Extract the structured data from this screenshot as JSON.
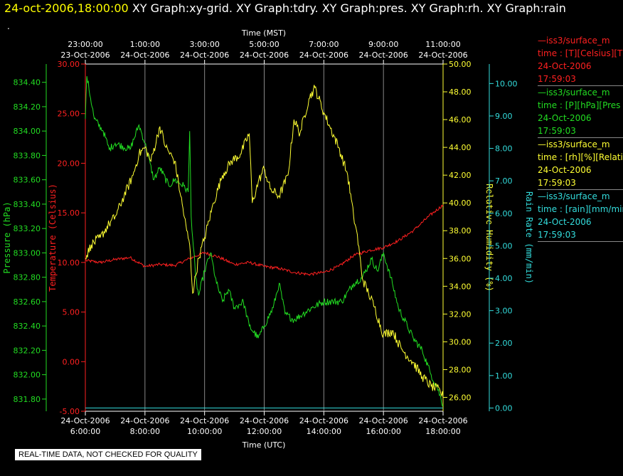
{
  "header": {
    "timestamp": "24-oct-2006,18:00:00",
    "graphs": "XY Graph:xy-grid.  XY Graph:tdry.  XY Graph:pres.  XY Graph:rh.  XY Graph:rain",
    "dot": "."
  },
  "footer": {
    "qc_notice": "REAL-TIME DATA, NOT CHECKED FOR QUALITY"
  },
  "legend": [
    {
      "color": "#ff2020",
      "lines": [
        "—iss3/surface_m",
        "time : [T][Celsius][T",
        "24-Oct-2006",
        "17:59:03"
      ]
    },
    {
      "color": "#22dd22",
      "lines": [
        "—iss3/surface_m",
        "time : [P][hPa][Pres",
        "24-Oct-2006",
        "17:59:03"
      ]
    },
    {
      "color": "#ffff33",
      "lines": [
        "—iss3/surface_m",
        "time : [rh][%][Relativ",
        "24-Oct-2006",
        "17:59:03"
      ]
    },
    {
      "color": "#33dddd",
      "lines": [
        "—iss3/surface_m",
        "time : [rain][mm/min",
        "24-Oct-2006",
        "17:59:03"
      ]
    }
  ],
  "chart_data": {
    "type": "line",
    "x_axis_top": {
      "label": "Time (MST)",
      "ticks": [
        {
          "time": "23:00:00",
          "date": "23-Oct-2006"
        },
        {
          "time": "1:00:00",
          "date": "24-Oct-2006"
        },
        {
          "time": "3:00:00",
          "date": "24-Oct-2006"
        },
        {
          "time": "5:00:00",
          "date": "24-Oct-2006"
        },
        {
          "time": "7:00:00",
          "date": "24-Oct-2006"
        },
        {
          "time": "9:00:00",
          "date": "24-Oct-2006"
        },
        {
          "time": "11:00:00",
          "date": "24-Oct-2006"
        }
      ]
    },
    "x_axis_bottom": {
      "label": "Time (UTC)",
      "ticks": [
        {
          "date": "24-Oct-2006",
          "time": "6:00:00"
        },
        {
          "date": "24-Oct-2006",
          "time": "8:00:00"
        },
        {
          "date": "24-Oct-2006",
          "time": "10:00:00"
        },
        {
          "date": "24-Oct-2006",
          "time": "12:00:00"
        },
        {
          "date": "24-Oct-2006",
          "time": "14:00:00"
        },
        {
          "date": "24-Oct-2006",
          "time": "16:00:00"
        },
        {
          "date": "24-Oct-2006",
          "time": "18:00:00"
        }
      ]
    },
    "xlim_hours_utc": [
      6,
      18
    ],
    "grid": true,
    "y_axes": [
      {
        "id": "pressure",
        "label": "Pressure (hPa)",
        "color": "#22dd22",
        "range": [
          831.7,
          834.55
        ],
        "ticks": [
          "834.40",
          "834.20",
          "834.00",
          "833.80",
          "833.60",
          "833.40",
          "833.20",
          "833.00",
          "832.80",
          "832.60",
          "832.40",
          "832.20",
          "832.00",
          "831.80"
        ]
      },
      {
        "id": "temperature",
        "label": "Temperature (Celsius)",
        "color": "#ff2020",
        "range": [
          -5,
          30
        ],
        "ticks": [
          "30.00",
          "25.00",
          "20.00",
          "15.00",
          "10.00",
          "5.00",
          "0.00",
          "-5.00"
        ]
      },
      {
        "id": "rh",
        "label": "Relative Humidity (%)",
        "color": "#ffff33",
        "range": [
          25.0,
          50.0
        ],
        "ticks": [
          "50.00",
          "48.00",
          "46.00",
          "44.00",
          "42.00",
          "40.00",
          "38.00",
          "36.00",
          "34.00",
          "32.00",
          "30.00",
          "28.00",
          "26.00"
        ]
      },
      {
        "id": "rain",
        "label": "Rain Rate (mm/min)",
        "color": "#33dddd",
        "range": [
          -0.1,
          10.6
        ],
        "ticks": [
          "10.00",
          "9.00",
          "8.00",
          "7.00",
          "6.00",
          "5.00",
          "4.00",
          "3.00",
          "2.00",
          "1.00",
          "0.00"
        ]
      }
    ],
    "series": [
      {
        "name": "iss3/surface_m time : [T][Celsius][T",
        "axis": "temperature",
        "color": "#ff2020",
        "noise": 0.15,
        "points": [
          [
            6.0,
            10.2
          ],
          [
            6.5,
            10.0
          ],
          [
            7.0,
            10.3
          ],
          [
            7.5,
            10.5
          ],
          [
            8.0,
            9.6
          ],
          [
            8.5,
            9.8
          ],
          [
            9.0,
            9.7
          ],
          [
            9.5,
            10.4
          ],
          [
            10.0,
            11.0
          ],
          [
            10.5,
            10.5
          ],
          [
            11.0,
            9.8
          ],
          [
            11.5,
            10.0
          ],
          [
            12.0,
            9.6
          ],
          [
            12.5,
            9.4
          ],
          [
            13.0,
            9.0
          ],
          [
            13.5,
            8.8
          ],
          [
            14.0,
            9.0
          ],
          [
            14.5,
            9.6
          ],
          [
            15.0,
            10.7
          ],
          [
            15.5,
            11.2
          ],
          [
            16.0,
            11.5
          ],
          [
            16.5,
            12.2
          ],
          [
            17.0,
            13.2
          ],
          [
            17.5,
            14.6
          ],
          [
            18.0,
            15.8
          ]
        ]
      },
      {
        "name": "iss3/surface_m time : [P][hPa][Pres",
        "axis": "pressure",
        "color": "#22dd22",
        "noise": 0.03,
        "points": [
          [
            6.0,
            834.1
          ],
          [
            6.05,
            834.45
          ],
          [
            6.3,
            834.1
          ],
          [
            6.6,
            834.0
          ],
          [
            6.8,
            833.85
          ],
          [
            7.0,
            833.9
          ],
          [
            7.5,
            833.85
          ],
          [
            7.8,
            834.05
          ],
          [
            8.0,
            833.9
          ],
          [
            8.3,
            833.6
          ],
          [
            8.5,
            833.7
          ],
          [
            8.8,
            833.55
          ],
          [
            9.0,
            833.6
          ],
          [
            9.3,
            833.55
          ],
          [
            9.45,
            833.5
          ],
          [
            9.5,
            834.0
          ],
          [
            9.55,
            833.3
          ],
          [
            9.7,
            832.8
          ],
          [
            9.8,
            832.65
          ],
          [
            10.0,
            832.85
          ],
          [
            10.2,
            833.0
          ],
          [
            10.4,
            832.75
          ],
          [
            10.6,
            832.6
          ],
          [
            10.8,
            832.7
          ],
          [
            11.0,
            832.55
          ],
          [
            11.3,
            832.6
          ],
          [
            11.5,
            832.4
          ],
          [
            11.8,
            832.3
          ],
          [
            12.0,
            832.4
          ],
          [
            12.3,
            832.55
          ],
          [
            12.5,
            832.75
          ],
          [
            12.7,
            832.5
          ],
          [
            13.0,
            832.45
          ],
          [
            13.3,
            832.5
          ],
          [
            13.6,
            832.55
          ],
          [
            14.0,
            832.6
          ],
          [
            14.3,
            832.6
          ],
          [
            14.6,
            832.6
          ],
          [
            15.0,
            832.75
          ],
          [
            15.3,
            832.8
          ],
          [
            15.6,
            832.95
          ],
          [
            15.8,
            832.85
          ],
          [
            16.0,
            833.0
          ],
          [
            16.3,
            832.75
          ],
          [
            16.5,
            832.55
          ],
          [
            16.8,
            832.4
          ],
          [
            17.0,
            832.3
          ],
          [
            17.3,
            832.2
          ],
          [
            17.6,
            832.0
          ],
          [
            17.8,
            831.9
          ],
          [
            18.0,
            831.75
          ]
        ]
      },
      {
        "name": "iss3/surface_m time : [rh][%][Relativ",
        "axis": "rh",
        "color": "#ffff33",
        "noise": 0.35,
        "points": [
          [
            6.0,
            36.0
          ],
          [
            6.2,
            37.0
          ],
          [
            6.5,
            37.5
          ],
          [
            6.8,
            38.5
          ],
          [
            7.0,
            39.0
          ],
          [
            7.3,
            40.5
          ],
          [
            7.6,
            42.0
          ],
          [
            7.8,
            43.5
          ],
          [
            8.0,
            44.0
          ],
          [
            8.2,
            43.0
          ],
          [
            8.5,
            45.5
          ],
          [
            8.7,
            44.0
          ],
          [
            9.0,
            43.0
          ],
          [
            9.2,
            40.5
          ],
          [
            9.4,
            38.0
          ],
          [
            9.5,
            37.0
          ],
          [
            9.6,
            33.5
          ],
          [
            9.8,
            36.0
          ],
          [
            10.0,
            37.5
          ],
          [
            10.3,
            40.0
          ],
          [
            10.6,
            42.0
          ],
          [
            10.9,
            43.0
          ],
          [
            11.2,
            43.5
          ],
          [
            11.5,
            45.0
          ],
          [
            11.6,
            40.0
          ],
          [
            11.8,
            41.5
          ],
          [
            12.0,
            42.5
          ],
          [
            12.2,
            41.0
          ],
          [
            12.5,
            40.5
          ],
          [
            12.8,
            42.0
          ],
          [
            13.0,
            46.0
          ],
          [
            13.2,
            45.0
          ],
          [
            13.5,
            47.5
          ],
          [
            13.7,
            48.3
          ],
          [
            14.0,
            46.5
          ],
          [
            14.2,
            45.5
          ],
          [
            14.5,
            44.0
          ],
          [
            14.8,
            42.0
          ],
          [
            15.0,
            39.0
          ],
          [
            15.1,
            38.0
          ],
          [
            15.3,
            34.5
          ],
          [
            15.5,
            33.5
          ],
          [
            15.7,
            32.5
          ],
          [
            16.0,
            30.5
          ],
          [
            16.3,
            30.8
          ],
          [
            16.6,
            29.5
          ],
          [
            17.0,
            28.5
          ],
          [
            17.3,
            27.5
          ],
          [
            17.6,
            26.8
          ],
          [
            17.9,
            26.5
          ],
          [
            18.0,
            26.0
          ]
        ]
      },
      {
        "name": "iss3/surface_m time : [rain][mm/min",
        "axis": "rain",
        "color": "#33dddd",
        "noise": 0,
        "points": [
          [
            6.0,
            0.0
          ],
          [
            18.0,
            0.0
          ]
        ]
      }
    ]
  }
}
